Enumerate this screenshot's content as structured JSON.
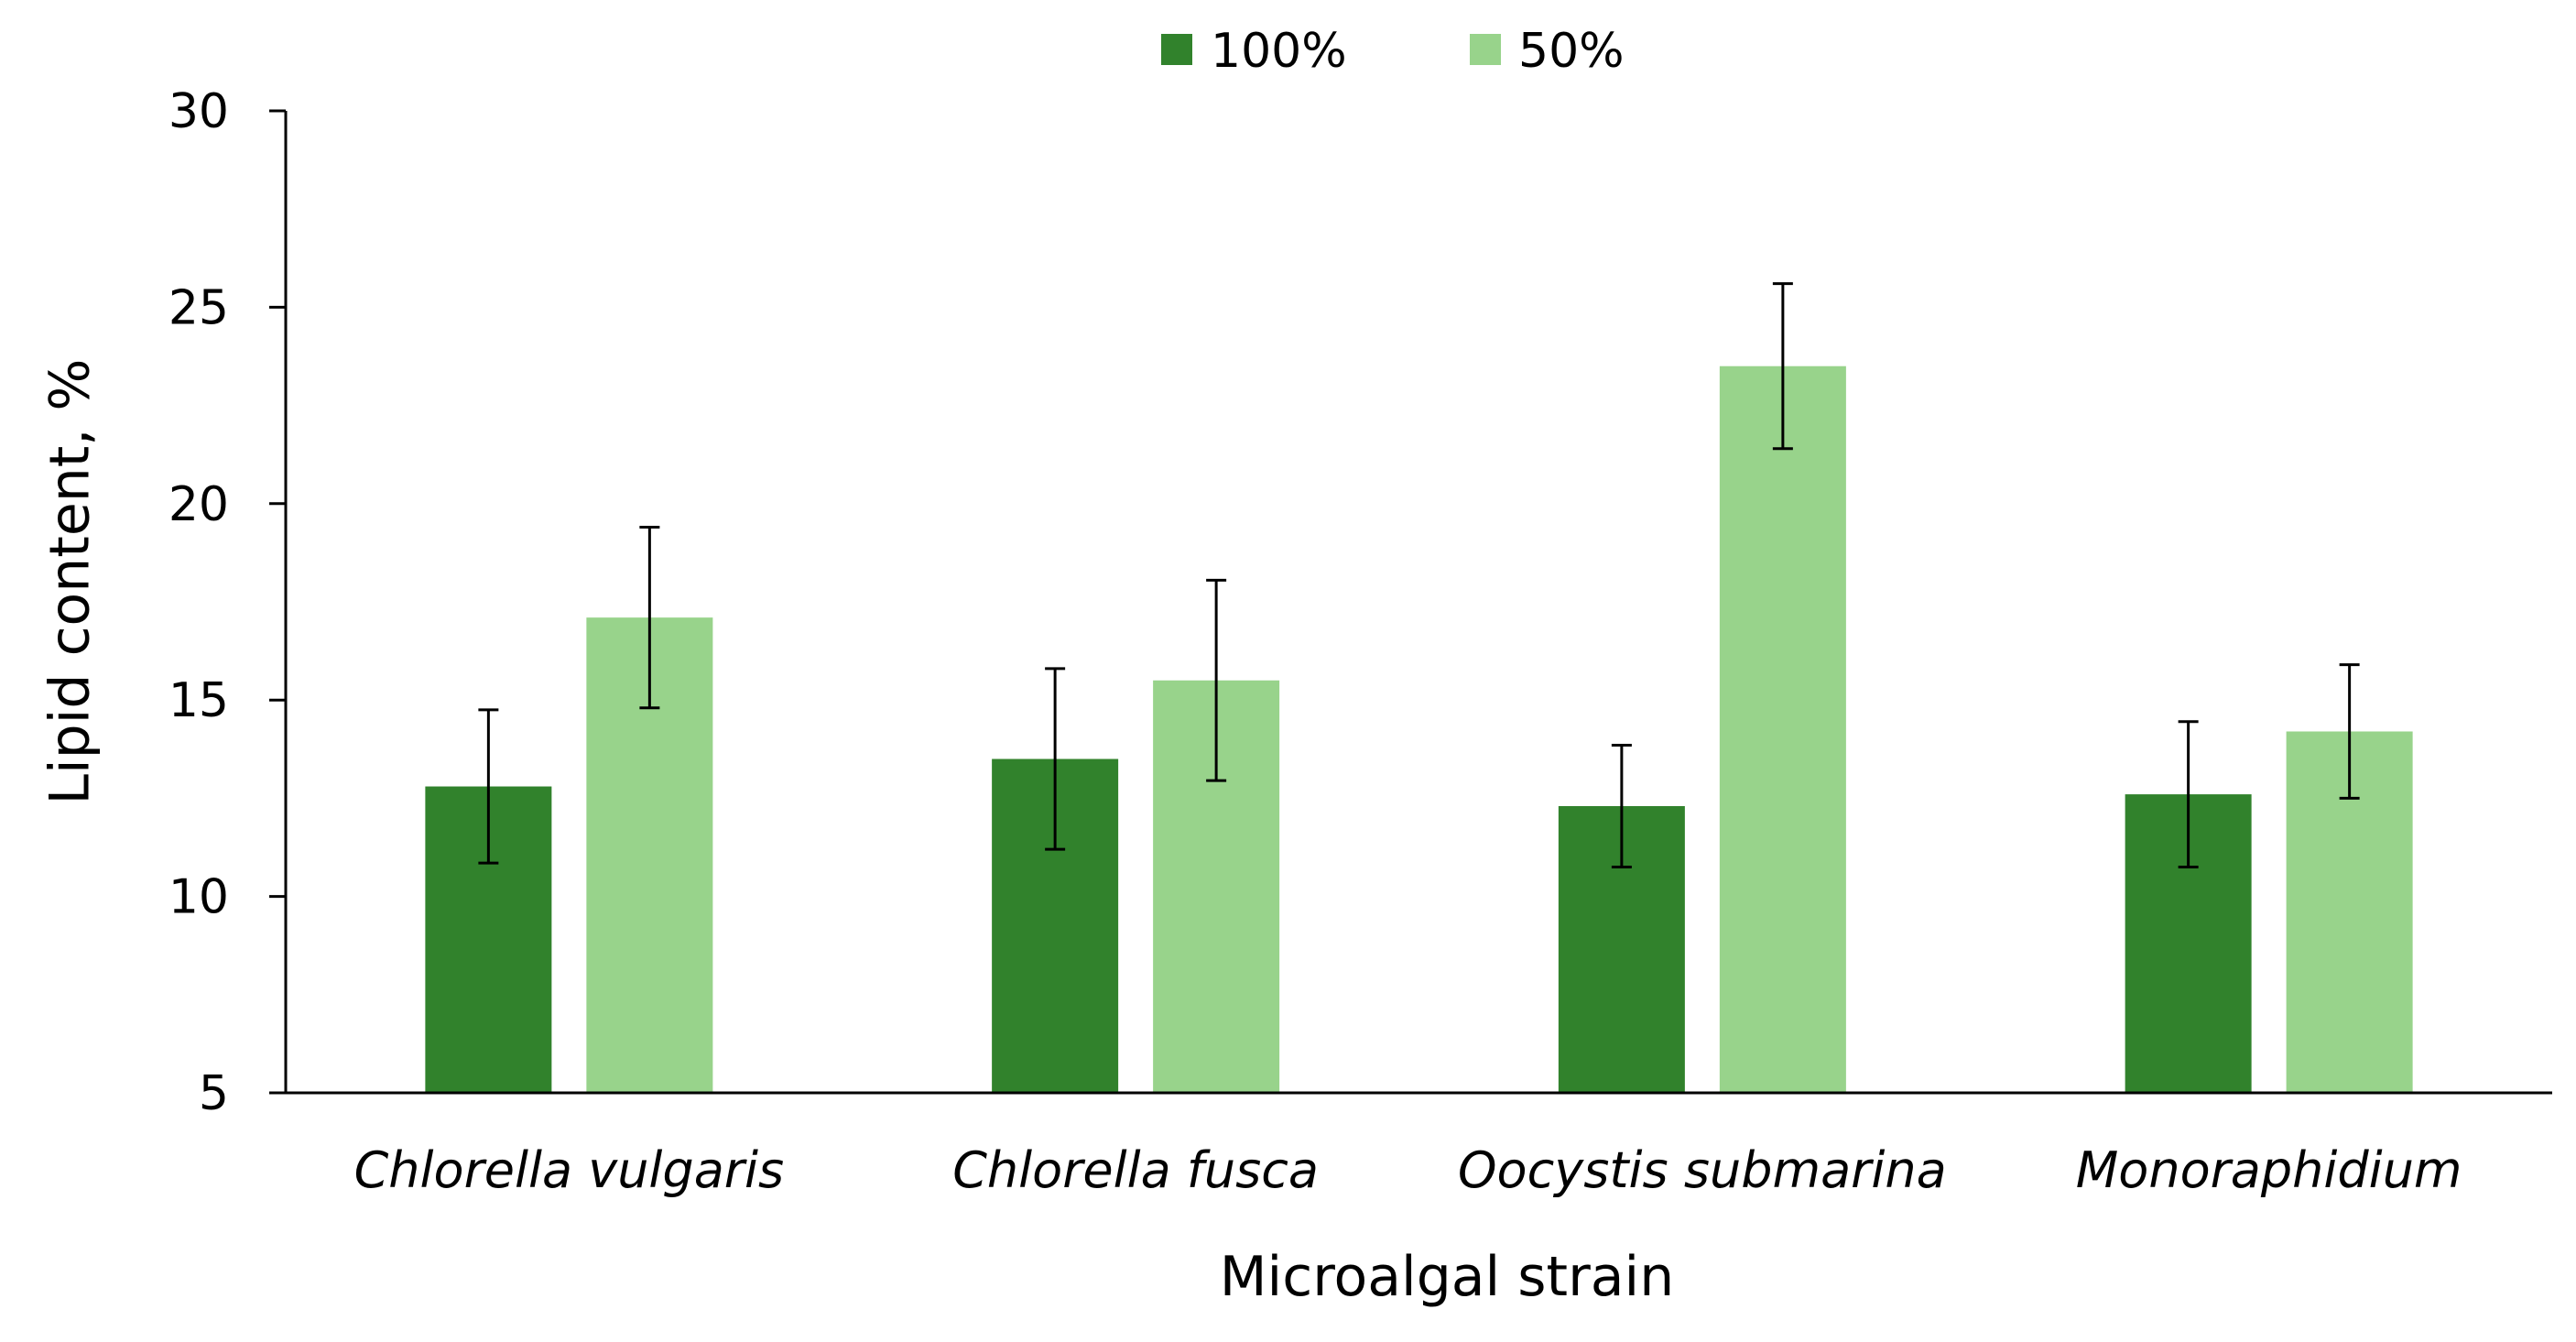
{
  "chart_data": {
    "type": "bar",
    "title": "",
    "xlabel": "Microalgal strain",
    "ylabel": "Lipid content, %",
    "ylim": [
      5,
      30
    ],
    "yticks": [
      5,
      10,
      15,
      20,
      25,
      30
    ],
    "grid": false,
    "legend_position": "top-center",
    "categories": [
      "Chlorella vulgaris",
      "Chlorella fusca",
      "Oocystis submarina",
      "Monoraphidium"
    ],
    "series": [
      {
        "name": "100%",
        "color": "#31822c",
        "values": [
          12.8,
          13.5,
          12.3,
          12.6
        ],
        "errors": [
          1.95,
          2.3,
          1.55,
          1.85
        ]
      },
      {
        "name": "50%",
        "color": "#98d38b",
        "values": [
          17.1,
          15.5,
          23.5,
          14.2
        ],
        "errors": [
          2.3,
          2.55,
          2.1,
          1.7
        ]
      }
    ]
  }
}
